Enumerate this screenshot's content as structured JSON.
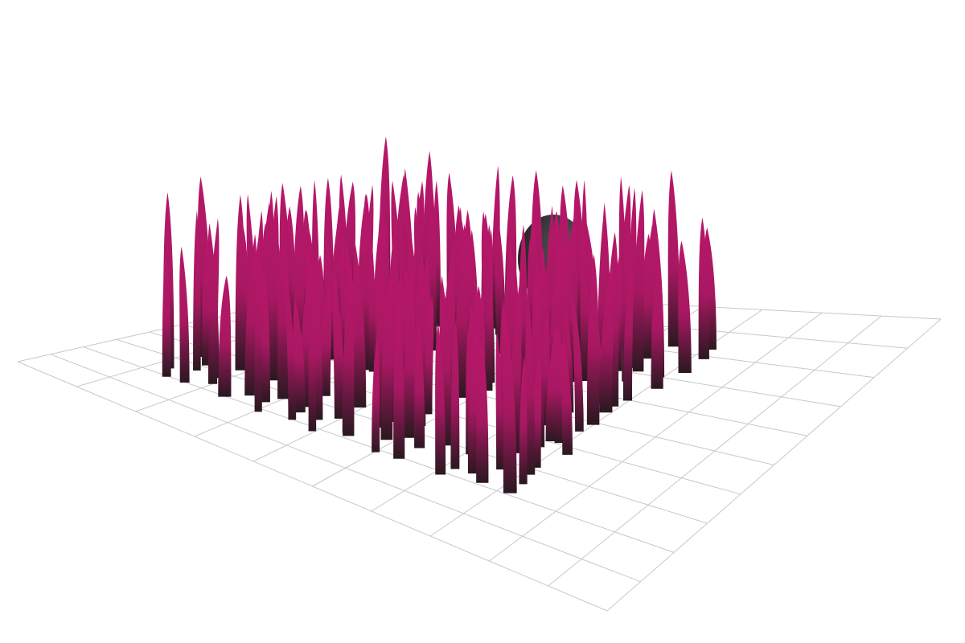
{
  "scene": {
    "background_color": "#ffffff",
    "grid_color": "#c8c8c8",
    "blade_color_tip": "#b8176a",
    "blade_color_mid": "#a81862",
    "blade_color_base": "#2a1820",
    "sphere_color_light": "#5e5e62",
    "sphere_color_dark": "#1b1b1d",
    "grid_divisions": 10,
    "blade_rows": 12,
    "blade_cols": 16,
    "objects": [
      "ground-grid",
      "grass-blades",
      "sphere"
    ]
  }
}
